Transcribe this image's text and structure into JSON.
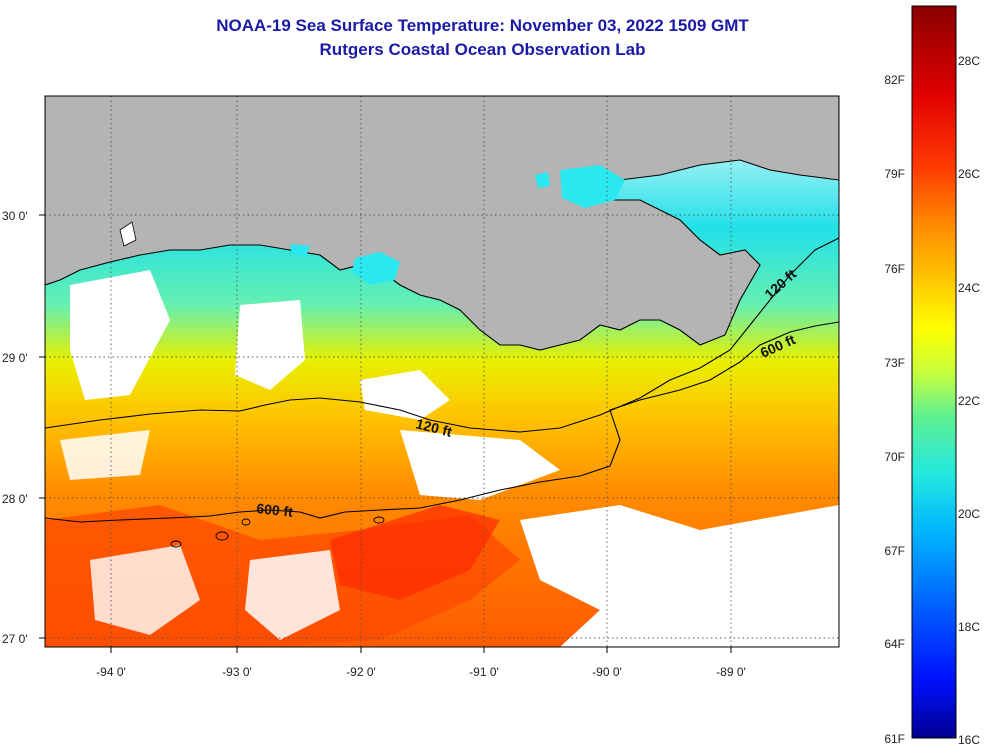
{
  "header": {
    "title": "NOAA-19 Sea Surface Temperature:  November 03, 2022 1509 GMT",
    "subtitle": "Rutgers Coastal Ocean Observation Lab"
  },
  "map": {
    "lon_ticks": [
      "-94 0'",
      "-93 0'",
      "-92 0'",
      "-91 0'",
      "-90 0'",
      "-89 0'"
    ],
    "lat_ticks": [
      "30 0'",
      "29 0'",
      "28 0'",
      "27 0'"
    ],
    "contours": [
      {
        "label": "120 ft",
        "instance": "west"
      },
      {
        "label": "120 ft",
        "instance": "east"
      },
      {
        "label": "600 ft",
        "instance": "west"
      },
      {
        "label": "600 ft",
        "instance": "east"
      }
    ],
    "colors": {
      "land": "#b4b4b4",
      "cloud": "#ffffff",
      "coastline": "#000000",
      "grid": "#555555"
    }
  },
  "colorbar": {
    "fahrenheit_labels": [
      "82F",
      "79F",
      "76F",
      "73F",
      "70F",
      "67F",
      "64F",
      "61F"
    ],
    "celsius_labels": [
      "28C",
      "26C",
      "24C",
      "22C",
      "20C",
      "18C",
      "16C"
    ],
    "stops": [
      "#8b0000",
      "#e00000",
      "#ff3a00",
      "#ff8c00",
      "#ffcc00",
      "#ffff00",
      "#c8ff3c",
      "#60f090",
      "#22e8e0",
      "#00b4ff",
      "#0060ff",
      "#0010ff",
      "#000090"
    ]
  }
}
